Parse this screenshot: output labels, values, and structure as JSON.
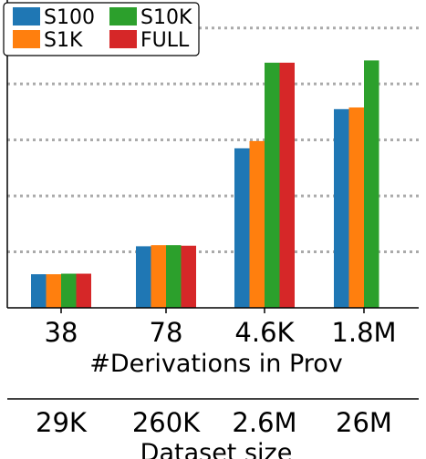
{
  "chart_data": {
    "type": "bar",
    "categories": [
      "38",
      "78",
      "4.6K",
      "1.8M"
    ],
    "secondary_categories": [
      "29K",
      "260K",
      "2.6M",
      "26M"
    ],
    "xlabel": "#Derivations in Prov",
    "secondary_xlabel": "Dataset size",
    "ylim": [
      0,
      5.5
    ],
    "grid": "y-dotted",
    "legend_position": "top-left",
    "series": [
      {
        "name": "S100",
        "color": "#1f77b4",
        "values": [
          0.6,
          1.1,
          2.85,
          3.55
        ]
      },
      {
        "name": "S1K",
        "color": "#ff7f0e",
        "values": [
          0.6,
          1.12,
          2.98,
          3.58
        ]
      },
      {
        "name": "S10K",
        "color": "#2ca02c",
        "values": [
          0.61,
          1.12,
          4.38,
          4.42
        ]
      },
      {
        "name": "FULL",
        "color": "#d62728",
        "values": [
          0.61,
          1.11,
          4.38,
          null
        ]
      }
    ]
  }
}
